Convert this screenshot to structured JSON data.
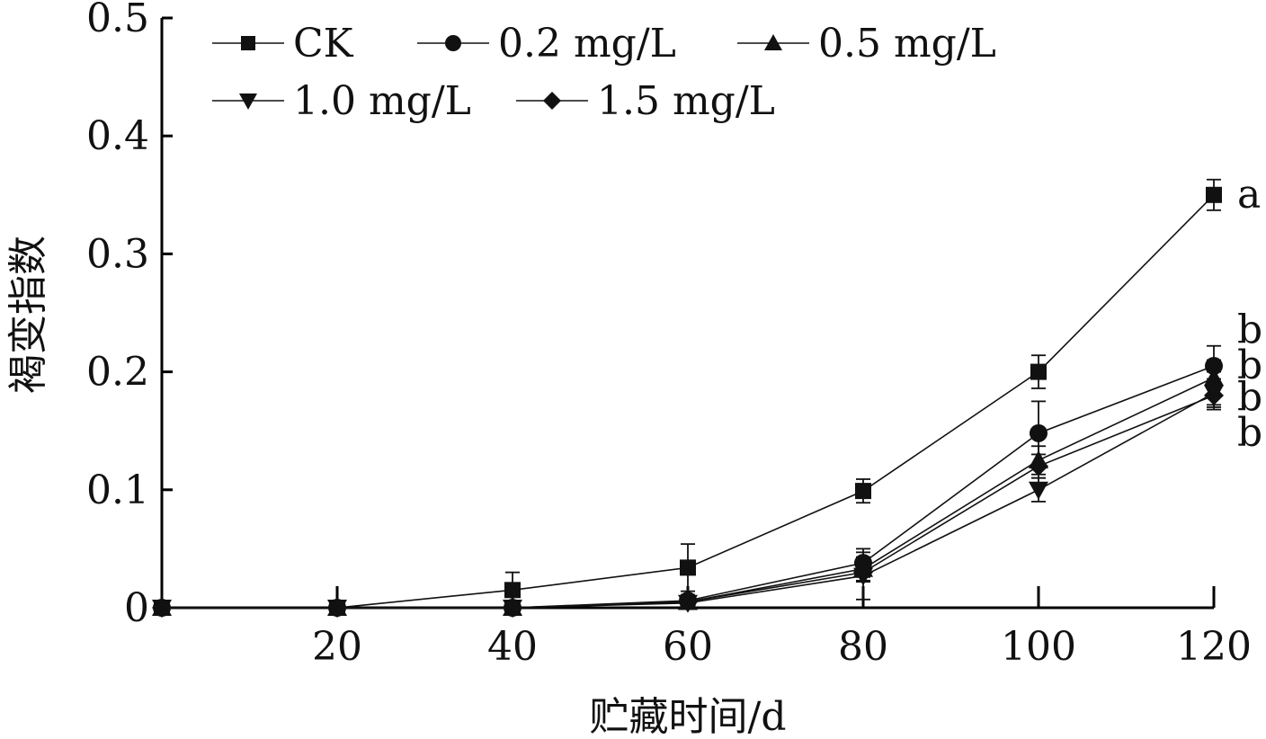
{
  "chart_data": {
    "type": "line",
    "title": "",
    "xlabel": "贮藏时间/d",
    "ylabel": "褐变指数",
    "xlim": [
      0,
      120
    ],
    "ylim": [
      0,
      0.5
    ],
    "x_ticks": [
      20,
      40,
      60,
      80,
      100,
      120
    ],
    "x_tick_labels": [
      "20",
      "40",
      "60",
      "80",
      "100",
      "120"
    ],
    "y_ticks": [
      0,
      0.1,
      0.2,
      0.3,
      0.4,
      0.5
    ],
    "y_tick_labels": [
      "0",
      "0.1",
      "0.2",
      "0.3",
      "0.4",
      "0.5"
    ],
    "grid": false,
    "legend_position": "top-left",
    "x": [
      0,
      20,
      40,
      60,
      80,
      100,
      120
    ],
    "series": [
      {
        "name": "CK",
        "marker": "square",
        "values": [
          0,
          0,
          0.015,
          0.034,
          0.099,
          0.2,
          0.35
        ],
        "errors": [
          0,
          0,
          0.015,
          0.02,
          0.01,
          0.014,
          0.013
        ]
      },
      {
        "name": "0.2 mg/L",
        "marker": "circle",
        "values": [
          0,
          0,
          0,
          0.006,
          0.038,
          0.148,
          0.205
        ],
        "errors": [
          0,
          0,
          0,
          0.005,
          0.012,
          0.027,
          0.005
        ]
      },
      {
        "name": "0.5 mg/L",
        "marker": "triangle-up",
        "values": [
          0,
          0,
          0,
          0.005,
          0.033,
          0.125,
          0.195
        ],
        "errors": [
          0,
          0,
          0,
          0.004,
          0.01,
          0.012,
          0.027
        ]
      },
      {
        "name": "1.0 mg/L",
        "marker": "triangle-down",
        "values": [
          0,
          0,
          0,
          0.004,
          0.027,
          0.1,
          0.182
        ],
        "errors": [
          0,
          0,
          0,
          0.003,
          0.02,
          0.01,
          0.012
        ]
      },
      {
        "name": "1.5 mg/L",
        "marker": "diamond",
        "values": [
          0,
          0,
          0,
          0.005,
          0.03,
          0.12,
          0.18
        ],
        "errors": [
          0,
          0,
          0,
          0.004,
          0.008,
          0.01,
          0.008
        ]
      }
    ],
    "annotations": [
      {
        "text": "a",
        "x": 120,
        "y": 0.35
      },
      {
        "text": "b",
        "x": 120,
        "y": 0.235
      },
      {
        "text": "b",
        "x": 120,
        "y": 0.205
      },
      {
        "text": "b",
        "x": 120,
        "y": 0.178
      },
      {
        "text": "b",
        "x": 120,
        "y": 0.148
      }
    ]
  }
}
